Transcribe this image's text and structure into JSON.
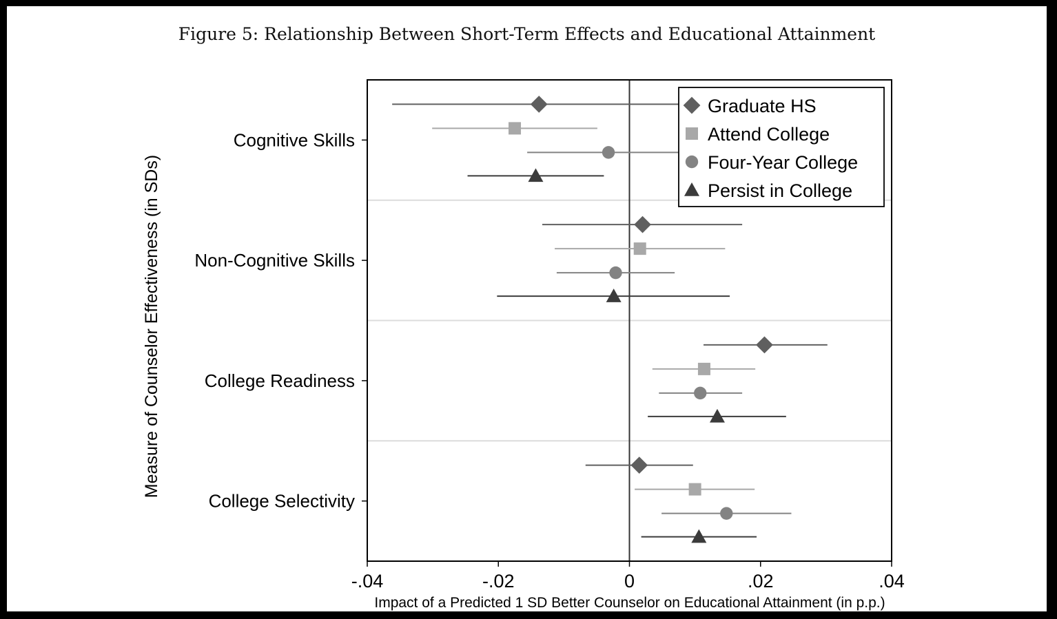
{
  "figure_title": "Figure 5: Relationship Between Short-Term Effects and Educational Attainment",
  "chart_data": {
    "type": "scatter",
    "subtype": "coefficient-plot-with-confidence-intervals",
    "title": "Figure 5: Relationship Between Short-Term Effects and Educational Attainment",
    "xlabel": "Impact of a Predicted 1 SD Better Counselor on Educational Attainment (in p.p.)",
    "ylabel": "Measure of Counselor Effectiveness (in SDs)",
    "xlim": [
      -0.04,
      0.04
    ],
    "xticks": [
      -0.04,
      -0.02,
      0,
      0.02,
      0.04
    ],
    "xtick_labels": [
      "-.04",
      "-.02",
      "0",
      ".02",
      ".04"
    ],
    "reference_line_x": 0,
    "categories": [
      "Cognitive Skills",
      "Non-Cognitive Skills",
      "College Readiness",
      "College Selectivity"
    ],
    "legend_position": "top-right",
    "grid": "horizontal separators between groups",
    "series": [
      {
        "name": "Graduate HS",
        "marker": "diamond",
        "color": "#5f5f5f",
        "values": [
          -0.0138,
          0.002,
          0.0206,
          0.0015
        ],
        "ci_low": [
          -0.0362,
          -0.0133,
          0.0113,
          -0.0067
        ],
        "ci_high": [
          0.0085,
          0.0172,
          0.0302,
          0.0097
        ]
      },
      {
        "name": "Attend College",
        "marker": "square",
        "color": "#a8a8a8",
        "values": [
          -0.0175,
          0.0016,
          0.0114,
          0.01
        ],
        "ci_low": [
          -0.0301,
          -0.0114,
          0.0035,
          0.0008
        ],
        "ci_high": [
          -0.0049,
          0.0146,
          0.0192,
          0.0191
        ]
      },
      {
        "name": "Four-Year College",
        "marker": "circle",
        "color": "#838383",
        "values": [
          -0.0032,
          -0.0021,
          0.0108,
          0.0148
        ],
        "ci_low": [
          -0.0156,
          -0.0111,
          0.0045,
          0.0049
        ],
        "ci_high": [
          0.0086,
          0.0069,
          0.0172,
          0.0247
        ]
      },
      {
        "name": "Persist in College",
        "marker": "triangle",
        "color": "#3b3b3b",
        "values": [
          -0.0143,
          -0.0024,
          0.0134,
          0.0106
        ],
        "ci_low": [
          -0.0247,
          -0.0202,
          0.0028,
          0.0018
        ],
        "ci_high": [
          -0.0039,
          0.0153,
          0.0239,
          0.0194
        ]
      }
    ]
  }
}
